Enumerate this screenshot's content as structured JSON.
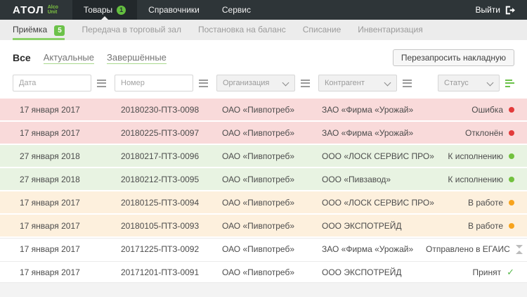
{
  "header": {
    "logo": {
      "brand": "АТОЛ",
      "product_line1": "Alco",
      "product_line2": "Unit"
    },
    "menu": [
      {
        "label": "Товары",
        "badge": "1",
        "active": true
      },
      {
        "label": "Справочники",
        "active": false
      },
      {
        "label": "Сервис",
        "active": false
      }
    ],
    "logout_label": "Выйти"
  },
  "tabs": [
    {
      "label": "Приёмка",
      "badge": "5",
      "active": true
    },
    {
      "label": "Передача в торговый зал",
      "active": false
    },
    {
      "label": "Постановка на баланс",
      "active": false
    },
    {
      "label": "Списание",
      "active": false
    },
    {
      "label": "Инвентаризация",
      "active": false
    }
  ],
  "view_tabs": [
    {
      "label": "Все",
      "active": true
    },
    {
      "label": "Актуальные",
      "active": false
    },
    {
      "label": "Завершённые",
      "active": false
    }
  ],
  "actions": {
    "requery_button": "Перезапросить накладную"
  },
  "filters": {
    "date_placeholder": "Дата",
    "number_placeholder": "Номер",
    "organization_label": "Организация",
    "contragent_label": "Контрагент",
    "status_label": "Статус"
  },
  "icons": {
    "check_glyph": "✓"
  },
  "colors": {
    "accent_green": "#6cc24a",
    "status_error": "#e23b3b",
    "status_ready": "#72c13e",
    "status_inwork": "#f7a31c",
    "row_pink": "#f9dada",
    "row_green": "#e8f3e2",
    "row_orange": "#fdf0dd",
    "header_bg": "#2e3538"
  },
  "table": {
    "rows": [
      {
        "date": "17 января 2017",
        "number": "20180230-ПТЗ-0098",
        "organization": "ОАО «Пивпотреб»",
        "contragent": "ЗАО «Фирма «Урожай»",
        "status": "Ошибка",
        "icon": "red-dot",
        "tone": "pink"
      },
      {
        "date": "17 января 2017",
        "number": "20180225-ПТЗ-0097",
        "organization": "ОАО «Пивпотреб»",
        "contragent": "ЗАО «Фирма «Урожай»",
        "status": "Отклонён",
        "icon": "red-dot",
        "tone": "pink"
      },
      {
        "date": "27 января 2018",
        "number": "20180217-ПТЗ-0096",
        "organization": "ОАО «Пивпотреб»",
        "contragent": "ООО «ЛОСК СЕРВИС ПРО»",
        "status": "К исполнению",
        "icon": "green-dot",
        "tone": "green"
      },
      {
        "date": "27 января 2018",
        "number": "20180212-ПТЗ-0095",
        "organization": "ОАО «Пивпотреб»",
        "contragent": "ООО «Пивзавод»",
        "status": "К исполнению",
        "icon": "green-dot",
        "tone": "green"
      },
      {
        "date": "17 января 2017",
        "number": "20180125-ПТЗ-0094",
        "organization": "ОАО «Пивпотреб»",
        "contragent": "ООО «ЛОСК СЕРВИС ПРО»",
        "status": "В работе",
        "icon": "orange-dot",
        "tone": "orange"
      },
      {
        "date": "17 января 2017",
        "number": "20180105-ПТЗ-0093",
        "organization": "ОАО «Пивпотреб»",
        "contragent": "ООО ЭКСПОТРЕЙД",
        "status": "В работе",
        "icon": "orange-dot",
        "tone": "orange"
      },
      {
        "date": "17 января 2017",
        "number": "20171225-ПТЗ-0092",
        "organization": "ОАО «Пивпотреб»",
        "contragent": "ЗАО «Фирма «Урожай»",
        "status": "Отправлено в ЕГАИС",
        "icon": "hourglass",
        "tone": "white"
      },
      {
        "date": "17 января 2017",
        "number": "20171201-ПТЗ-0091",
        "organization": "ОАО «Пивпотреб»",
        "contragent": "ООО ЭКСПОТРЕЙД",
        "status": "Принят",
        "icon": "check",
        "tone": "white"
      }
    ]
  }
}
